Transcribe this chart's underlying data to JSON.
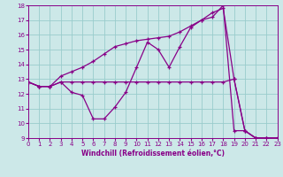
{
  "background_color": "#cce8e8",
  "grid_color": "#99cccc",
  "line_color": "#880088",
  "spine_color": "#880088",
  "xlim": [
    0,
    23
  ],
  "ylim": [
    9,
    18
  ],
  "xlabel": "Windchill (Refroidissement éolien,°C)",
  "xticks": [
    0,
    1,
    2,
    3,
    4,
    5,
    6,
    7,
    8,
    9,
    10,
    11,
    12,
    13,
    14,
    15,
    16,
    17,
    18,
    19,
    20,
    21,
    22,
    23
  ],
  "yticks": [
    9,
    10,
    11,
    12,
    13,
    14,
    15,
    16,
    17,
    18
  ],
  "series1_x": [
    0,
    1,
    2,
    3,
    4,
    5,
    6,
    7,
    8,
    9,
    10,
    11,
    12,
    13,
    14,
    15,
    16,
    17,
    18,
    19,
    20,
    21,
    22,
    23
  ],
  "series1_y": [
    12.8,
    12.5,
    12.5,
    12.8,
    12.1,
    11.9,
    10.3,
    10.3,
    11.1,
    12.1,
    13.8,
    15.5,
    15.0,
    13.8,
    15.2,
    16.5,
    17.0,
    17.2,
    18.0,
    9.5,
    9.5,
    9.0,
    9.0,
    9.0
  ],
  "series2_x": [
    0,
    1,
    2,
    3,
    4,
    5,
    6,
    7,
    8,
    9,
    10,
    11,
    12,
    13,
    14,
    15,
    16,
    17,
    18,
    19,
    20,
    21,
    22,
    23
  ],
  "series2_y": [
    12.8,
    12.5,
    12.5,
    13.2,
    13.5,
    13.8,
    14.2,
    14.7,
    15.2,
    15.4,
    15.6,
    15.7,
    15.8,
    15.9,
    16.2,
    16.6,
    17.0,
    17.5,
    17.8,
    13.0,
    9.5,
    9.0,
    9.0,
    9.0
  ],
  "series3_x": [
    0,
    1,
    2,
    3,
    4,
    5,
    6,
    7,
    8,
    9,
    10,
    11,
    12,
    13,
    14,
    15,
    16,
    17,
    18,
    19,
    20,
    21,
    22,
    23
  ],
  "series3_y": [
    12.8,
    12.5,
    12.5,
    12.8,
    12.8,
    12.8,
    12.8,
    12.8,
    12.8,
    12.8,
    12.8,
    12.8,
    12.8,
    12.8,
    12.8,
    12.8,
    12.8,
    12.8,
    12.8,
    13.0,
    9.5,
    9.0,
    9.0,
    9.0
  ]
}
